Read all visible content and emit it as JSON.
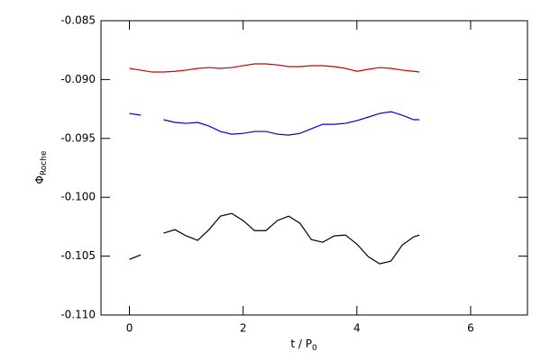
{
  "chart_data": {
    "type": "line",
    "xlabel": "t / P",
    "xlabel_sub": "0",
    "ylabel": "Φ",
    "ylabel_sub": "Roche",
    "x": [
      0,
      0.2,
      0.4,
      0.6,
      0.8,
      1.0,
      1.2,
      1.4,
      1.6,
      1.8,
      2.0,
      2.2,
      2.4,
      2.6,
      2.8,
      3.0,
      3.2,
      3.4,
      3.6,
      3.8,
      4.0,
      4.2,
      4.4,
      4.6,
      4.8,
      5.0,
      5.1
    ],
    "series": [
      {
        "color": "#cc0000",
        "values": [
          -0.08905,
          -0.0892,
          -0.08936,
          -0.08936,
          -0.0893,
          -0.0892,
          -0.08905,
          -0.08898,
          -0.08905,
          -0.08898,
          -0.08882,
          -0.08867,
          -0.08867,
          -0.08875,
          -0.0889,
          -0.0889,
          -0.08882,
          -0.08882,
          -0.0889,
          -0.08905,
          -0.0893,
          -0.08913,
          -0.08898,
          -0.08905,
          -0.0892,
          -0.0893,
          -0.08936
        ]
      },
      {
        "color": "#0000cc",
        "values": [
          -0.09288,
          -0.09303,
          null,
          -0.09341,
          -0.09364,
          -0.09372,
          -0.09364,
          -0.09395,
          -0.09441,
          -0.09464,
          -0.09457,
          -0.09441,
          -0.09441,
          -0.09464,
          -0.09472,
          -0.09457,
          -0.09418,
          -0.0938,
          -0.0938,
          -0.09372,
          -0.09349,
          -0.09319,
          -0.09288,
          -0.09273,
          -0.09303,
          -0.09341,
          -0.09341
        ]
      },
      {
        "color": "#000000",
        "values": [
          -0.10527,
          -0.10489,
          null,
          -0.10305,
          -0.10275,
          -0.10328,
          -0.10366,
          -0.10275,
          -0.1016,
          -0.10137,
          -0.10198,
          -0.10283,
          -0.10283,
          -0.10198,
          -0.1016,
          -0.10221,
          -0.10359,
          -0.10382,
          -0.10328,
          -0.10321,
          -0.10397,
          -0.10504,
          -0.10565,
          -0.10542,
          -0.10405,
          -0.10336,
          -0.10321
        ]
      }
    ],
    "xlim": [
      -0.5,
      7
    ],
    "xticks": [
      0,
      2,
      4,
      6
    ],
    "ylim": [
      -0.11,
      -0.085
    ],
    "yticks": [
      {
        "value": -0.11,
        "label": "-0.110"
      },
      {
        "value": -0.105,
        "label": "-0.105"
      },
      {
        "value": -0.1,
        "label": "-0.100"
      },
      {
        "value": -0.095,
        "label": "-0.095"
      },
      {
        "value": -0.09,
        "label": "-0.090"
      },
      {
        "value": -0.085,
        "label": "-0.085"
      }
    ],
    "grid": false
  }
}
